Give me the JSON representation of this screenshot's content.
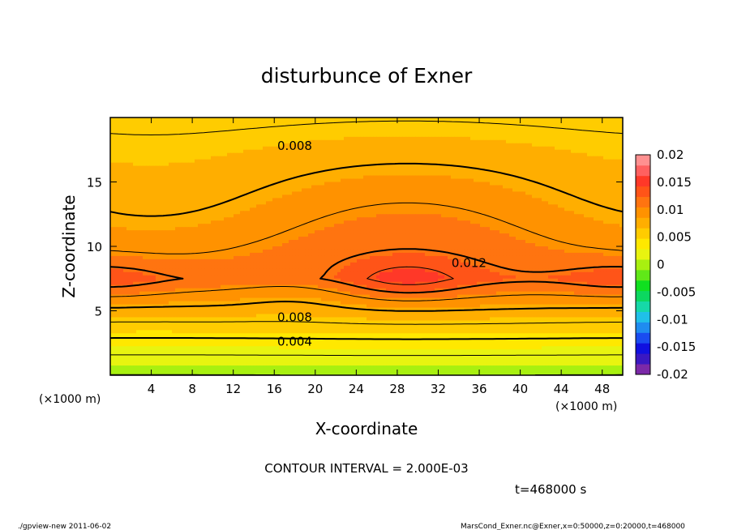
{
  "footer": {
    "left": "./gpview-new   2011-06-02",
    "right": "MarsCond_Exner.nc@Exner,x=0:50000,z=0:20000,t=468000"
  },
  "chart_data": {
    "type": "heatmap",
    "title": "disturbunce of Exner",
    "xlabel": "X-coordinate",
    "ylabel": "Z-coordinate",
    "x_unit": "(×1000 m)",
    "y_unit": "(×1000 m)",
    "xlim": [
      0,
      50
    ],
    "ylim": [
      0,
      20
    ],
    "x_ticks": [
      4,
      8,
      12,
      16,
      20,
      24,
      28,
      32,
      36,
      40,
      44,
      48
    ],
    "y_ticks": [
      5,
      10,
      15
    ],
    "contour_interval_text": "CONTOUR INTERVAL = 2.000E-03",
    "time_text": "t=468000 s",
    "contour_levels": [
      0,
      0.002,
      0.004,
      0.006,
      0.008,
      0.01,
      0.012,
      0.014
    ],
    "contour_labels": [
      {
        "text": "0.008",
        "x": 18,
        "z": 17.8
      },
      {
        "text": "0.012",
        "x": 35,
        "z": 8.7
      },
      {
        "text": "0.008",
        "x": 18,
        "z": 4.5
      },
      {
        "text": "0.004",
        "x": 18,
        "z": 2.6
      }
    ],
    "colorbar": {
      "ticks": [
        "0.02",
        "0.015",
        "0.01",
        "0.005",
        "0",
        "-0.005",
        "-0.01",
        "-0.015",
        "-0.02"
      ],
      "tick_values": [
        0.02,
        0.015,
        0.01,
        0.005,
        0,
        -0.005,
        -0.01,
        -0.015,
        -0.02
      ],
      "range": [
        -0.02,
        0.02
      ],
      "colors": [
        "#7b29a8",
        "#3a18c2",
        "#1010e0",
        "#1a4cf0",
        "#1f8cf0",
        "#20c0e8",
        "#16d8a8",
        "#0cd860",
        "#10e020",
        "#60e818",
        "#a8f010",
        "#e8f410",
        "#ffe800",
        "#ffcc00",
        "#ffae00",
        "#ff9200",
        "#ff7410",
        "#ff5418",
        "#ff3828",
        "#ff6060",
        "#ff9090"
      ]
    },
    "field_description": "Exner perturbation field; maximum ~0.015 near x=29 km, z=7.5 km; about 0 near ground; ~0.006 near top"
  }
}
